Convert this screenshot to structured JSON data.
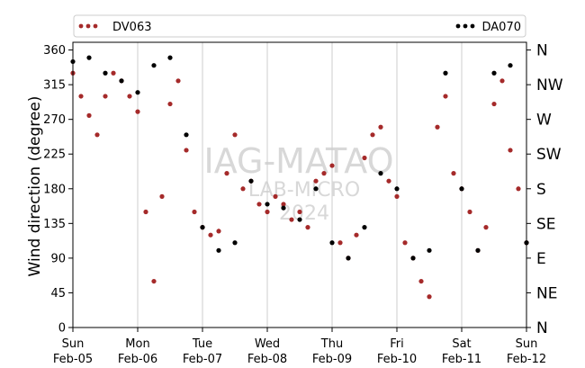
{
  "chart_data": {
    "type": "scatter",
    "ylabel": "Wind direction (degree)",
    "ylim": [
      0,
      370
    ],
    "yticks": [
      0,
      45,
      90,
      135,
      180,
      225,
      270,
      315,
      360
    ],
    "compass_ticks": [
      {
        "value": 0,
        "label": "N"
      },
      {
        "value": 45,
        "label": "NE"
      },
      {
        "value": 90,
        "label": "E"
      },
      {
        "value": 135,
        "label": "SE"
      },
      {
        "value": 180,
        "label": "S"
      },
      {
        "value": 225,
        "label": "SW"
      },
      {
        "value": 270,
        "label": "W"
      },
      {
        "value": 315,
        "label": "NW"
      },
      {
        "value": 360,
        "label": "N"
      }
    ],
    "xlim": [
      "2023-02-05",
      "2023-02-12"
    ],
    "x_ticks": [
      {
        "day": "Sun",
        "date": "Feb-05"
      },
      {
        "day": "Mon",
        "date": "Feb-06"
      },
      {
        "day": "Tue",
        "date": "Feb-07"
      },
      {
        "day": "Wed",
        "date": "Feb-08"
      },
      {
        "day": "Thu",
        "date": "Feb-09"
      },
      {
        "day": "Fri",
        "date": "Feb-10"
      },
      {
        "day": "Sat",
        "date": "Feb-11"
      },
      {
        "day": "Sun",
        "date": "Feb-12"
      }
    ],
    "grid": "vertical",
    "legend": "top",
    "watermark": [
      "IAG-MATAO",
      "LAB-MICRO",
      "2024"
    ],
    "series": [
      {
        "name": "DV063",
        "color": "#a52a2a",
        "x": [
          "2023-02-05T00:00",
          "2023-02-05T03:00",
          "2023-02-05T06:00",
          "2023-02-05T09:00",
          "2023-02-05T12:00",
          "2023-02-05T15:00",
          "2023-02-05T18:00",
          "2023-02-05T21:00",
          "2023-02-06T00:00",
          "2023-02-06T03:00",
          "2023-02-06T06:00",
          "2023-02-06T09:00",
          "2023-02-06T12:00",
          "2023-02-06T15:00",
          "2023-02-06T18:00",
          "2023-02-06T21:00",
          "2023-02-07T00:00",
          "2023-02-07T03:00",
          "2023-02-07T06:00",
          "2023-02-07T09:00",
          "2023-02-07T12:00",
          "2023-02-07T15:00",
          "2023-02-07T18:00",
          "2023-02-07T21:00",
          "2023-02-08T00:00",
          "2023-02-08T03:00",
          "2023-02-08T06:00",
          "2023-02-08T09:00",
          "2023-02-08T12:00",
          "2023-02-08T15:00",
          "2023-02-08T18:00",
          "2023-02-08T21:00",
          "2023-02-09T00:00",
          "2023-02-09T03:00",
          "2023-02-09T06:00",
          "2023-02-09T09:00",
          "2023-02-09T12:00",
          "2023-02-09T15:00",
          "2023-02-09T18:00",
          "2023-02-09T21:00",
          "2023-02-10T00:00",
          "2023-02-10T03:00",
          "2023-02-10T06:00",
          "2023-02-10T09:00",
          "2023-02-10T12:00",
          "2023-02-10T15:00",
          "2023-02-10T18:00",
          "2023-02-10T21:00",
          "2023-02-11T00:00",
          "2023-02-11T03:00",
          "2023-02-11T06:00",
          "2023-02-11T09:00",
          "2023-02-11T12:00",
          "2023-02-11T15:00",
          "2023-02-11T18:00",
          "2023-02-11T21:00",
          "2023-02-12T00:00"
        ],
        "y": [
          330,
          300,
          275,
          250,
          300,
          330,
          320,
          300,
          280,
          150,
          60,
          170,
          290,
          320,
          230,
          150,
          130,
          120,
          125,
          200,
          250,
          180,
          190,
          160,
          150,
          170,
          160,
          140,
          150,
          130,
          190,
          200,
          210,
          110,
          90,
          120,
          220,
          250,
          260,
          190,
          170,
          110,
          90,
          60,
          40,
          260,
          300,
          200,
          180,
          150,
          100,
          130,
          290,
          320,
          230,
          180,
          110
        ]
      },
      {
        "name": "DA070",
        "color": "#000000",
        "x": [
          "2023-02-05T00:00",
          "2023-02-05T06:00",
          "2023-02-05T12:00",
          "2023-02-05T18:00",
          "2023-02-06T00:00",
          "2023-02-06T06:00",
          "2023-02-06T12:00",
          "2023-02-06T18:00",
          "2023-02-07T00:00",
          "2023-02-07T06:00",
          "2023-02-07T12:00",
          "2023-02-07T18:00",
          "2023-02-08T00:00",
          "2023-02-08T06:00",
          "2023-02-08T12:00",
          "2023-02-08T18:00",
          "2023-02-09T00:00",
          "2023-02-09T06:00",
          "2023-02-09T12:00",
          "2023-02-09T18:00",
          "2023-02-10T00:00",
          "2023-02-10T06:00",
          "2023-02-10T12:00",
          "2023-02-10T18:00",
          "2023-02-11T00:00",
          "2023-02-11T06:00",
          "2023-02-11T12:00",
          "2023-02-11T18:00",
          "2023-02-12T00:00"
        ],
        "y": [
          345,
          350,
          330,
          320,
          305,
          340,
          350,
          250,
          130,
          100,
          110,
          190,
          160,
          155,
          140,
          180,
          110,
          90,
          130,
          200,
          180,
          90,
          100,
          330,
          180,
          100,
          330,
          340,
          110
        ]
      }
    ]
  }
}
